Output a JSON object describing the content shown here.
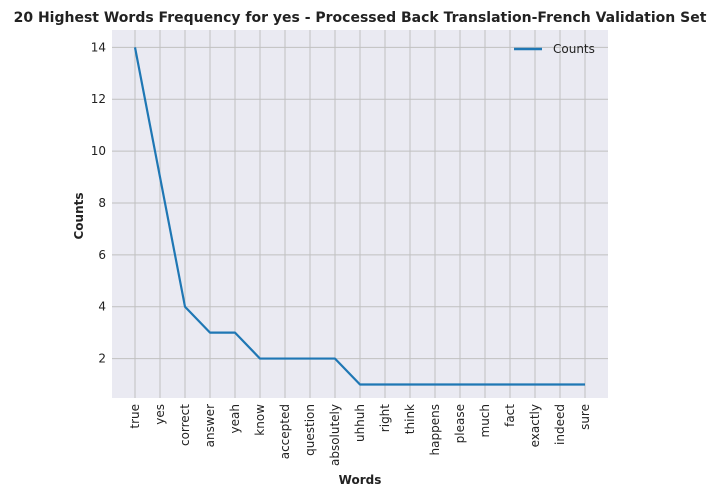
{
  "chart_data": {
    "type": "line",
    "title": "20 Highest Words Frequency for yes - Processed Back Translation-French Validation Set",
    "xlabel": "Words",
    "ylabel": "Counts",
    "categories": [
      "true",
      "yes",
      "correct",
      "answer",
      "yeah",
      "know",
      "accepted",
      "question",
      "absolutely",
      "uhhuh",
      "right",
      "think",
      "happens",
      "please",
      "much",
      "fact",
      "exactly",
      "indeed",
      "sure"
    ],
    "series": [
      {
        "name": "Counts",
        "values": [
          14,
          9,
          4,
          3,
          3,
          2,
          2,
          2,
          2,
          1,
          1,
          1,
          1,
          1,
          1,
          1,
          1,
          1,
          1
        ]
      }
    ],
    "ylim": [
      0.48,
      14.67
    ],
    "yticks": [
      2,
      4,
      6,
      8,
      10,
      12,
      14
    ],
    "grid": true,
    "legend_position": "top-right",
    "colors": {
      "line": "#1f77b4",
      "plot_bg": "#eaeaf2",
      "grid": "#c0c0c0"
    }
  }
}
